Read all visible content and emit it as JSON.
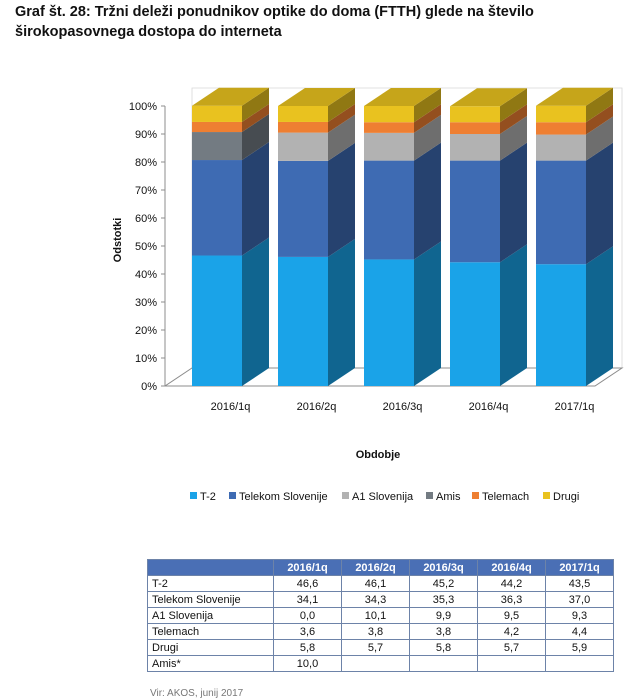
{
  "title": {
    "line1": "Graf št. 28: Tržni deleži ponudnikov optike do doma (FTTH) glede na število",
    "line2": "širokopasovnega dostopa do interneta"
  },
  "chart_data": {
    "type": "bar",
    "stacked": true,
    "three_d": true,
    "categories": [
      "2016/1q",
      "2016/2q",
      "2016/3q",
      "2016/4q",
      "2017/1q"
    ],
    "series": [
      {
        "name": "T-2",
        "color": "#1aa3e8",
        "values": [
          46.6,
          46.1,
          45.2,
          44.2,
          43.5
        ]
      },
      {
        "name": "Telekom Slovenije",
        "color": "#3e6bb3",
        "values": [
          34.1,
          34.3,
          35.3,
          36.3,
          37.0
        ]
      },
      {
        "name": "A1 Slovenija",
        "color": "#b2b2b2",
        "values": [
          0.0,
          10.1,
          9.9,
          9.5,
          9.3
        ]
      },
      {
        "name": "Amis",
        "color": "#737b82",
        "values": [
          10.0,
          0,
          0,
          0,
          0
        ]
      },
      {
        "name": "Telemach",
        "color": "#ee7f32",
        "values": [
          3.6,
          3.8,
          3.8,
          4.2,
          4.4
        ]
      },
      {
        "name": "Drugi",
        "color": "#e9c21f",
        "values": [
          5.8,
          5.7,
          5.8,
          5.7,
          5.9
        ]
      }
    ],
    "ylabel": "Odstotki",
    "xlabel": "Obdobje",
    "ylim": [
      0,
      100
    ],
    "yticks": [
      "0%",
      "10%",
      "20%",
      "30%",
      "40%",
      "50%",
      "60%",
      "70%",
      "80%",
      "90%",
      "100%"
    ],
    "grid": false,
    "legend_position": "bottom"
  },
  "table": {
    "headers": [
      "",
      "2016/1q",
      "2016/2q",
      "2016/3q",
      "2016/4q",
      "2017/1q"
    ],
    "rows": [
      {
        "label": "T-2",
        "values": [
          "46,6",
          "46,1",
          "45,2",
          "44,2",
          "43,5"
        ]
      },
      {
        "label": "Telekom Slovenije",
        "values": [
          "34,1",
          "34,3",
          "35,3",
          "36,3",
          "37,0"
        ]
      },
      {
        "label": "A1 Slovenija",
        "values": [
          "0,0",
          "10,1",
          "9,9",
          "9,5",
          "9,3"
        ]
      },
      {
        "label": "Telemach",
        "values": [
          "3,6",
          "3,8",
          "3,8",
          "4,2",
          "4,4"
        ]
      },
      {
        "label": "Drugi",
        "values": [
          "5,8",
          "5,7",
          "5,8",
          "5,7",
          "5,9"
        ]
      },
      {
        "label": "Amis*",
        "values": [
          "10,0",
          "",
          "",
          "",
          ""
        ]
      }
    ]
  },
  "source": "Vir: AKOS, junij 2017"
}
